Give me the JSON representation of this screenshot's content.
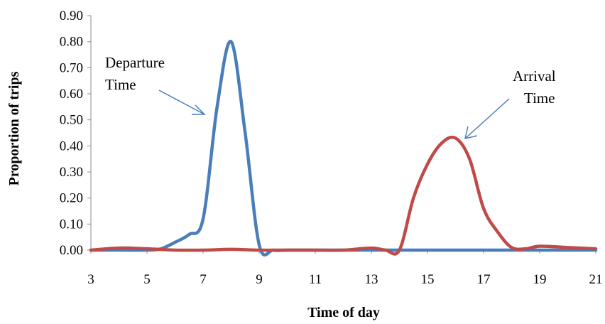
{
  "chart_data": {
    "type": "line",
    "xlabel": "Time of day",
    "ylabel": "Proportion of trips",
    "xlim": [
      3,
      21
    ],
    "ylim": [
      0,
      0.9
    ],
    "x_ticks": [
      "3",
      "5",
      "7",
      "9",
      "11",
      "13",
      "15",
      "17",
      "19",
      "21"
    ],
    "y_ticks": [
      "0.00",
      "0.10",
      "0.20",
      "0.30",
      "0.40",
      "0.50",
      "0.60",
      "0.70",
      "0.80",
      "0.90"
    ],
    "grid": false,
    "series": [
      {
        "name": "Departure Time",
        "color": "#4a7ebb",
        "points": [
          [
            3,
            0.0
          ],
          [
            4,
            0.0
          ],
          [
            5,
            0.0
          ],
          [
            5.5,
            0.005
          ],
          [
            6,
            0.03
          ],
          [
            6.5,
            0.06
          ],
          [
            7,
            0.12
          ],
          [
            7.5,
            0.55
          ],
          [
            8,
            0.8
          ],
          [
            8.5,
            0.45
          ],
          [
            9,
            0.02
          ],
          [
            9.5,
            0.0
          ],
          [
            10,
            0.0
          ],
          [
            11,
            0.0
          ],
          [
            12,
            0.0
          ],
          [
            13,
            0.0
          ],
          [
            14,
            0.0
          ],
          [
            15,
            0.0
          ],
          [
            16,
            0.0
          ],
          [
            17,
            0.0
          ],
          [
            18,
            0.0
          ],
          [
            19,
            0.0
          ],
          [
            20,
            0.0
          ],
          [
            21,
            0.0
          ]
        ]
      },
      {
        "name": "Arrival Time",
        "color": "#be4b48",
        "points": [
          [
            3,
            0.0
          ],
          [
            4,
            0.008
          ],
          [
            5,
            0.005
          ],
          [
            6,
            0.0
          ],
          [
            7,
            0.0
          ],
          [
            8,
            0.003
          ],
          [
            9,
            0.0
          ],
          [
            10,
            0.0
          ],
          [
            11,
            0.0
          ],
          [
            12,
            0.0
          ],
          [
            13,
            0.008
          ],
          [
            13.5,
            0.0
          ],
          [
            14,
            0.0
          ],
          [
            14.5,
            0.2
          ],
          [
            15,
            0.33
          ],
          [
            15.5,
            0.41
          ],
          [
            16,
            0.43
          ],
          [
            16.5,
            0.35
          ],
          [
            17,
            0.16
          ],
          [
            17.5,
            0.07
          ],
          [
            18,
            0.01
          ],
          [
            18.5,
            0.005
          ],
          [
            19,
            0.015
          ],
          [
            20,
            0.01
          ],
          [
            21,
            0.005
          ]
        ]
      }
    ],
    "annotations": [
      {
        "lines": [
          "Departure",
          "Time"
        ],
        "series": "Departure Time"
      },
      {
        "lines": [
          "Arrival",
          "Time"
        ],
        "series": "Arrival Time"
      }
    ]
  }
}
